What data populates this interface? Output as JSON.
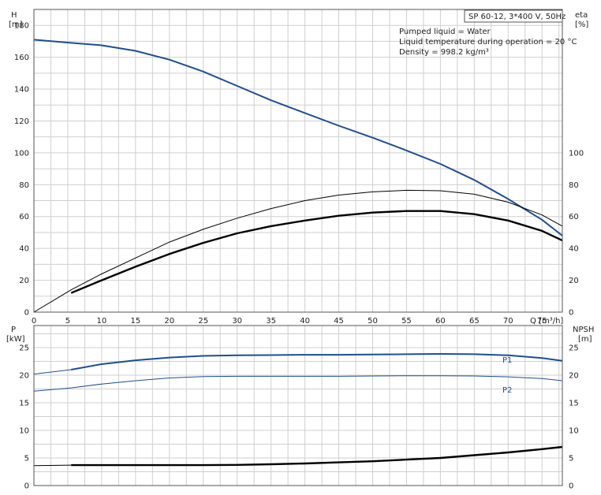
{
  "legend_box": {
    "model": "SP 60-12, 3*400 V, 50Hz",
    "line1": "Pumped liquid = Water",
    "line2": "Liquid temperature during operation = 20 °C",
    "line3": "Density = 998.2 kg/m³"
  },
  "chart_data": [
    {
      "type": "line",
      "x_label": "Q [m³/h]",
      "xlim": [
        0,
        78
      ],
      "x_ticks": [
        0,
        5,
        10,
        15,
        20,
        25,
        30,
        35,
        40,
        45,
        50,
        55,
        60,
        65,
        70,
        75
      ],
      "left_axis": {
        "label_line1": "H",
        "label_line2": "[m]",
        "ylim": [
          0,
          190
        ],
        "ticks": [
          0,
          20,
          40,
          60,
          80,
          100,
          120,
          140,
          160,
          180
        ]
      },
      "right_axis": {
        "label_line1": "eta",
        "label_line2": "[%]",
        "ylim": [
          0,
          190
        ],
        "ticks": [
          0,
          20,
          40,
          60,
          80,
          100
        ]
      },
      "grid": true,
      "series": [
        {
          "id": "head",
          "color": "#1f4e8c",
          "axis": "left",
          "points": [
            [
              0,
              171
            ],
            [
              5.5,
              169
            ],
            [
              10,
              167.5
            ],
            [
              15,
              164
            ],
            [
              20,
              158.5
            ],
            [
              25,
              151
            ],
            [
              30,
              142
            ],
            [
              35,
              133
            ],
            [
              40,
              125
            ],
            [
              45,
              117
            ],
            [
              50,
              109.5
            ],
            [
              55,
              101.5
            ],
            [
              60,
              93
            ],
            [
              65,
              83
            ],
            [
              70,
              71
            ],
            [
              75,
              58
            ],
            [
              78,
              48
            ]
          ]
        },
        {
          "id": "eta_thin",
          "color": "#000000",
          "axis": "right",
          "points": [
            [
              0,
              0
            ],
            [
              5.5,
              14
            ],
            [
              10,
              24
            ],
            [
              15,
              34
            ],
            [
              20,
              44
            ],
            [
              25,
              52
            ],
            [
              30,
              59
            ],
            [
              35,
              65
            ],
            [
              40,
              70
            ],
            [
              45,
              73.5
            ],
            [
              50,
              75.5
            ],
            [
              55,
              76.5
            ],
            [
              60,
              76.2
            ],
            [
              65,
              74
            ],
            [
              70,
              69
            ],
            [
              75,
              61
            ],
            [
              78,
              54
            ]
          ]
        },
        {
          "id": "eta_thick",
          "color": "#000000",
          "axis": "right",
          "points": [
            [
              5.5,
              12
            ],
            [
              10,
              20
            ],
            [
              15,
              28.5
            ],
            [
              20,
              36.5
            ],
            [
              25,
              43.5
            ],
            [
              30,
              49.5
            ],
            [
              35,
              54
            ],
            [
              40,
              57.5
            ],
            [
              45,
              60.5
            ],
            [
              50,
              62.5
            ],
            [
              55,
              63.5
            ],
            [
              60,
              63.5
            ],
            [
              65,
              61.5
            ],
            [
              70,
              57.5
            ],
            [
              75,
              51
            ],
            [
              78,
              45
            ]
          ]
        }
      ]
    },
    {
      "type": "line",
      "xlim": [
        0,
        78
      ],
      "left_axis": {
        "label_line1": "P",
        "label_line2": "[kW]",
        "ylim": [
          0,
          29
        ],
        "ticks": [
          0,
          5,
          10,
          15,
          20,
          25
        ]
      },
      "right_axis": {
        "label_line1": "NPSH",
        "label_line2": "[m]",
        "ylim": [
          0,
          29
        ],
        "ticks": [
          0,
          5,
          10,
          15,
          20,
          25
        ]
      },
      "grid": true,
      "series": [
        {
          "id": "p1",
          "name": "P1",
          "color": "#1f4e8c",
          "axis": "left",
          "points_thin": [
            [
              0,
              20.2
            ],
            [
              5.5,
              21.0
            ]
          ],
          "points": [
            [
              5.5,
              21.0
            ],
            [
              10,
              22.0
            ],
            [
              15,
              22.7
            ],
            [
              20,
              23.2
            ],
            [
              25,
              23.5
            ],
            [
              30,
              23.6
            ],
            [
              35,
              23.65
            ],
            [
              40,
              23.7
            ],
            [
              45,
              23.7
            ],
            [
              50,
              23.75
            ],
            [
              55,
              23.8
            ],
            [
              60,
              23.85
            ],
            [
              65,
              23.8
            ],
            [
              70,
              23.6
            ],
            [
              75,
              23.1
            ],
            [
              78,
              22.6
            ]
          ]
        },
        {
          "id": "p2",
          "name": "P2",
          "color": "#1f4e8c",
          "axis": "left",
          "points_thin": [
            [
              0,
              17.1
            ],
            [
              5.5,
              17.7
            ]
          ],
          "points": [
            [
              5.5,
              17.7
            ],
            [
              10,
              18.4
            ],
            [
              15,
              19.0
            ],
            [
              20,
              19.5
            ],
            [
              25,
              19.75
            ],
            [
              30,
              19.8
            ],
            [
              35,
              19.8
            ],
            [
              40,
              19.8
            ],
            [
              45,
              19.8
            ],
            [
              50,
              19.85
            ],
            [
              55,
              19.9
            ],
            [
              60,
              19.9
            ],
            [
              65,
              19.85
            ],
            [
              70,
              19.7
            ],
            [
              75,
              19.4
            ],
            [
              78,
              19.0
            ]
          ]
        },
        {
          "id": "npsh",
          "color": "#000000",
          "axis": "right",
          "points_thin": [
            [
              0,
              3.6
            ],
            [
              5.5,
              3.7
            ]
          ],
          "points": [
            [
              5.5,
              3.7
            ],
            [
              10,
              3.7
            ],
            [
              15,
              3.7
            ],
            [
              20,
              3.7
            ],
            [
              25,
              3.7
            ],
            [
              30,
              3.75
            ],
            [
              35,
              3.85
            ],
            [
              40,
              4.0
            ],
            [
              45,
              4.2
            ],
            [
              50,
              4.4
            ],
            [
              55,
              4.7
            ],
            [
              60,
              5.0
            ],
            [
              65,
              5.5
            ],
            [
              70,
              6.0
            ],
            [
              75,
              6.6
            ],
            [
              78,
              7.0
            ]
          ]
        }
      ]
    }
  ]
}
